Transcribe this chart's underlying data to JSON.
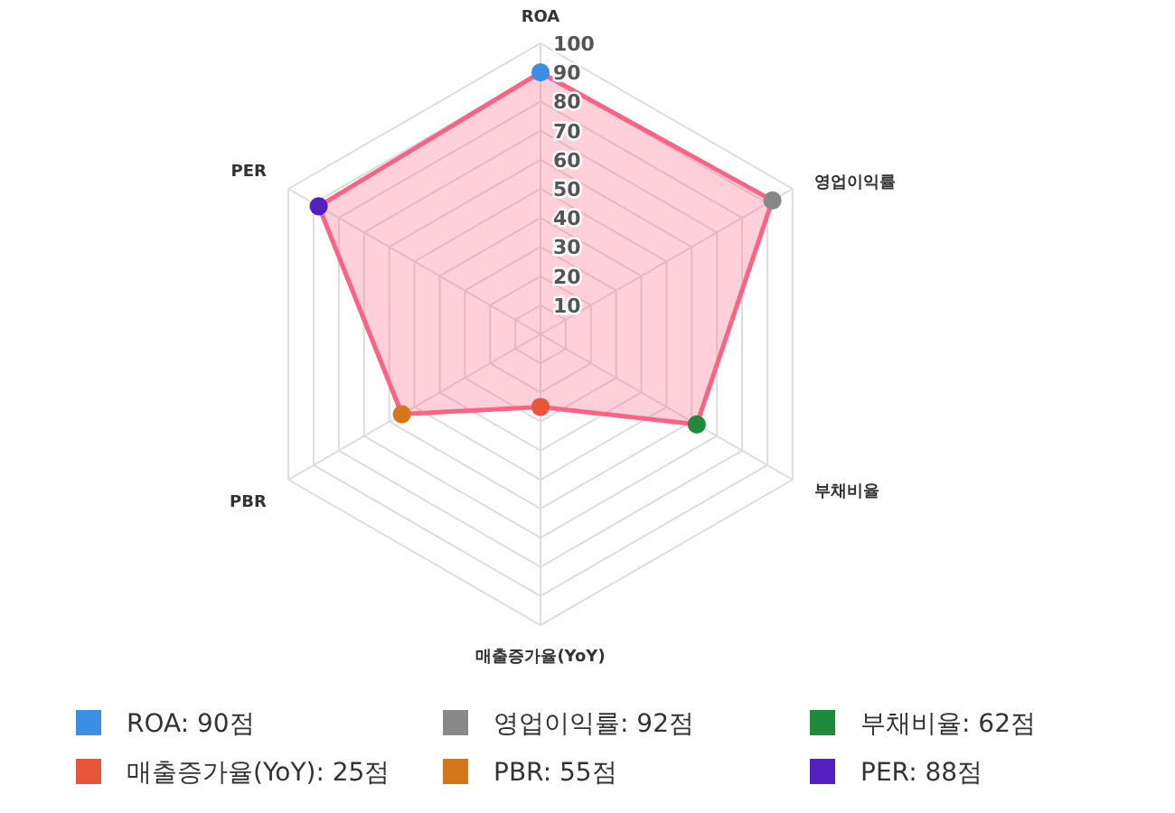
{
  "chart_data": {
    "type": "radar",
    "categories": [
      "ROA",
      "영업이익률",
      "부채비율",
      "매출증가율(YoY)",
      "PBR",
      "PER"
    ],
    "series": [
      {
        "color": "#ff6384",
        "values": [
          90,
          92,
          62,
          25,
          55,
          88
        ],
        "colors": [
          "#3a8ee6",
          "#888888",
          "#1f8a3a",
          "#e8553a",
          "#d4771a",
          "#5620c0"
        ]
      }
    ],
    "annotations": [
      "ROA: 90점",
      "영업이익률: 92점",
      "부채비율: 62점",
      "매출증가율(YoY): 25점",
      "PBR: 55점",
      "PER: 88점"
    ],
    "ylim": [
      0,
      100
    ],
    "yticks": [
      10,
      20,
      30,
      40,
      50,
      60,
      70,
      80,
      90,
      100
    ],
    "grid": true,
    "marker": "circle"
  }
}
